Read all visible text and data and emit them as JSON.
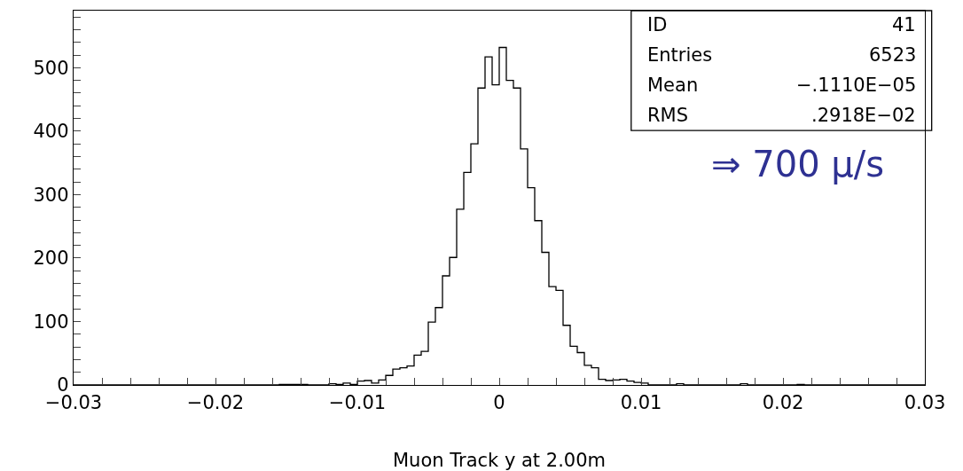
{
  "chart_data": {
    "type": "histogram",
    "xlabel": "Muon Track y at 2.00m",
    "color": "#000000",
    "bins": [
      -0.03,
      -0.0295,
      -0.029,
      -0.0285,
      -0.028,
      -0.0275,
      -0.027,
      -0.0265,
      -0.026,
      -0.0255,
      -0.025,
      -0.0245,
      -0.024,
      -0.0235,
      -0.023,
      -0.0225,
      -0.022,
      -0.0215,
      -0.021,
      -0.0205,
      -0.02,
      -0.0195,
      -0.019,
      -0.0185,
      -0.018,
      -0.0175,
      -0.017,
      -0.0165,
      -0.016,
      -0.0155,
      -0.015,
      -0.0145,
      -0.014,
      -0.0135,
      -0.013,
      -0.0125,
      -0.012,
      -0.0115,
      -0.011,
      -0.0105,
      -0.01,
      -0.0095,
      -0.009,
      -0.0085,
      -0.008,
      -0.0075,
      -0.007,
      -0.0065,
      -0.006,
      -0.0055,
      -0.005,
      -0.0045,
      -0.004,
      -0.0035,
      -0.003,
      -0.0025,
      -0.002,
      -0.0015,
      -0.001,
      -0.0005,
      0,
      0.0005,
      0.001,
      0.0015,
      0.002,
      0.0025,
      0.003,
      0.0035,
      0.004,
      0.0045,
      0.005,
      0.0055,
      0.006,
      0.0065,
      0.007,
      0.0075,
      0.008,
      0.0085,
      0.009,
      0.0095,
      0.01,
      0.0105,
      0.011,
      0.0115,
      0.012,
      0.0125,
      0.013,
      0.0135,
      0.014,
      0.0145,
      0.015,
      0.0155,
      0.016,
      0.0165,
      0.017,
      0.0175,
      0.018,
      0.0185,
      0.019,
      0.0195,
      0.02,
      0.0205,
      0.021,
      0.0215,
      0.022,
      0.0225,
      0.023,
      0.0235,
      0.024,
      0.0245,
      0.025,
      0.0255,
      0.026,
      0.0265,
      0.027,
      0.0275,
      0.028,
      0.0285,
      0.029,
      0.0295,
      0.03
    ],
    "values": [
      0,
      0,
      0,
      0,
      0,
      0,
      0,
      0,
      0,
      0,
      0,
      0,
      0,
      0,
      0,
      0,
      0,
      0,
      0,
      0,
      0,
      0,
      0,
      0,
      0,
      0,
      0,
      0,
      0,
      1,
      1,
      1,
      1,
      0,
      0,
      0,
      2,
      1,
      3,
      1,
      6,
      7,
      3,
      8,
      15,
      25,
      27,
      30,
      47,
      53,
      99,
      122,
      172,
      201,
      277,
      335,
      380,
      468,
      517,
      473,
      532,
      480,
      468,
      372,
      311,
      259,
      209,
      155,
      149,
      94,
      61,
      51,
      31,
      27,
      9,
      7,
      8,
      9,
      6,
      4,
      3,
      0,
      0,
      0,
      0,
      2,
      0,
      0,
      0,
      0,
      0,
      0,
      0,
      0,
      2,
      0,
      0,
      0,
      0,
      0,
      0,
      0,
      1,
      0,
      0,
      0,
      0,
      0,
      0,
      0,
      0,
      0,
      0,
      0,
      0,
      0,
      0,
      0,
      0,
      0
    ],
    "xlim": [
      -0.03,
      0.03
    ],
    "xticks": [
      {
        "value": -0.03,
        "label": "−0.03"
      },
      {
        "value": -0.028,
        "label": null
      },
      {
        "value": -0.026,
        "label": null
      },
      {
        "value": -0.024,
        "label": null
      },
      {
        "value": -0.022,
        "label": null
      },
      {
        "value": -0.02,
        "label": "−0.02"
      },
      {
        "value": -0.018,
        "label": null
      },
      {
        "value": -0.016,
        "label": null
      },
      {
        "value": -0.014,
        "label": null
      },
      {
        "value": -0.012,
        "label": null
      },
      {
        "value": -0.01,
        "label": "−0.01"
      },
      {
        "value": -0.008,
        "label": null
      },
      {
        "value": -0.006,
        "label": null
      },
      {
        "value": -0.004,
        "label": null
      },
      {
        "value": -0.002,
        "label": null
      },
      0,
      {
        "value": 0.002,
        "label": null
      },
      {
        "value": 0.004,
        "label": null
      },
      {
        "value": 0.006,
        "label": null
      },
      {
        "value": 0.008,
        "label": null
      },
      0.01,
      {
        "value": 0.012,
        "label": null
      },
      {
        "value": 0.014,
        "label": null
      },
      {
        "value": 0.016,
        "label": null
      },
      {
        "value": 0.018,
        "label": null
      },
      0.02,
      {
        "value": 0.022,
        "label": null
      },
      {
        "value": 0.024,
        "label": null
      },
      {
        "value": 0.026,
        "label": null
      },
      {
        "value": 0.028,
        "label": null
      },
      0.03
    ],
    "ylim": [
      0,
      590
    ],
    "yticks": [
      0,
      {
        "value": 20,
        "label": null
      },
      {
        "value": 40,
        "label": null
      },
      {
        "value": 60,
        "label": null
      },
      {
        "value": 80,
        "label": null
      },
      100,
      {
        "value": 120,
        "label": null
      },
      {
        "value": 140,
        "label": null
      },
      {
        "value": 160,
        "label": null
      },
      {
        "value": 180,
        "label": null
      },
      200,
      {
        "value": 220,
        "label": null
      },
      {
        "value": 240,
        "label": null
      },
      {
        "value": 260,
        "label": null
      },
      {
        "value": 280,
        "label": null
      },
      300,
      {
        "value": 320,
        "label": null
      },
      {
        "value": 340,
        "label": null
      },
      {
        "value": 360,
        "label": null
      },
      {
        "value": 380,
        "label": null
      },
      400,
      {
        "value": 420,
        "label": null
      },
      {
        "value": 440,
        "label": null
      },
      {
        "value": 460,
        "label": null
      },
      {
        "value": 480,
        "label": null
      },
      500,
      {
        "value": 520,
        "label": null
      },
      {
        "value": 540,
        "label": null
      },
      {
        "value": 560,
        "label": null
      },
      {
        "value": 580,
        "label": null
      }
    ],
    "annotations": [
      "ID",
      "41",
      "Entries",
      "6523",
      "Mean",
      "−.1110E−05",
      "RMS",
      ".2918E−02",
      "⇒ 700 μ/s"
    ]
  }
}
